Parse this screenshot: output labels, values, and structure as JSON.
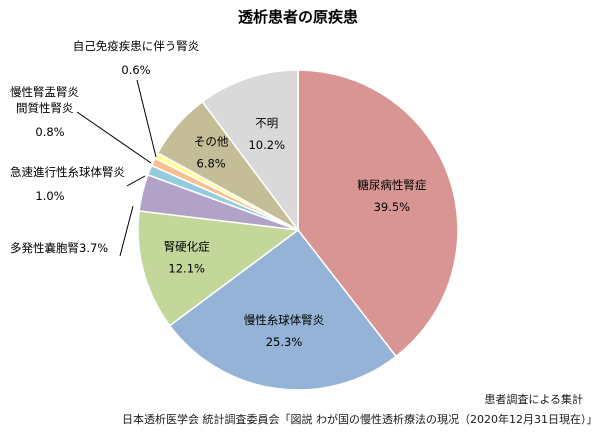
{
  "chart_data": {
    "type": "pie",
    "title": "透析患者の原疾患",
    "unit": "%",
    "slices": [
      {
        "name": "糖尿病性腎症",
        "value": 39.5,
        "label": "39.5%",
        "color": "#d99594"
      },
      {
        "name": "慢性糸球体腎炎",
        "value": 25.3,
        "label": "25.3%",
        "color": "#95b3d7"
      },
      {
        "name": "腎硬化症",
        "value": 12.1,
        "label": "12.1%",
        "color": "#c4d79b"
      },
      {
        "name": "多発性嚢胞腎",
        "value": 3.7,
        "label": "3.7%",
        "color": "#b3a2c7"
      },
      {
        "name": "急速進行性糸球体腎炎",
        "value": 1.0,
        "label": "1.0%",
        "color": "#93cddd"
      },
      {
        "name": "慢性腎盂腎炎\n間質性腎炎",
        "value": 0.8,
        "label": "0.8%",
        "color": "#fabf8f"
      },
      {
        "name": "自己免疫疾患に伴う腎炎",
        "value": 0.6,
        "label": "0.6%",
        "color": "#ffff99"
      },
      {
        "name": "その他",
        "value": 6.8,
        "label": "6.8%",
        "color": "#c4bd97"
      },
      {
        "name": "不明",
        "value": 10.2,
        "label": "10.2%",
        "color": "#d9d9d9"
      }
    ],
    "start_angle_deg": 0,
    "direction": "clockwise",
    "legend": "none"
  },
  "notes": {
    "aggregation": "患者調査による集計",
    "source": "日本透析医学会 統計調査委員会「図説 わが国の慢性透析療法の現况（2020年12月31日現在）」"
  }
}
